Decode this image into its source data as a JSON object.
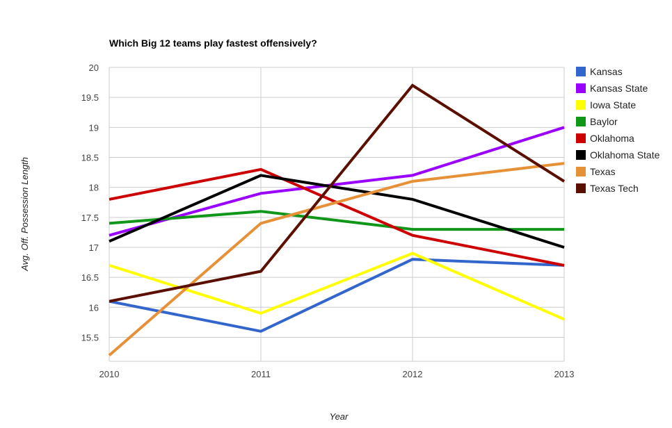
{
  "chart_data": {
    "type": "line",
    "title": "Which Big 12 teams play fastest offensively?",
    "xlabel": "Year",
    "ylabel": "Avg. Off. Possession Length",
    "x": [
      "2010",
      "2011",
      "2012",
      "2013"
    ],
    "ylim": [
      15.1,
      20
    ],
    "yticks": [
      "15.5",
      "16",
      "16.5",
      "17",
      "17.5",
      "18",
      "18.5",
      "19",
      "19.5",
      "20"
    ],
    "grid": true,
    "legend_position": "right",
    "series": [
      {
        "name": "Kansas",
        "color": "#3366cc",
        "values": [
          16.1,
          15.6,
          16.8,
          16.7
        ]
      },
      {
        "name": "Kansas State",
        "color": "#9900ff",
        "values": [
          17.2,
          17.9,
          18.2,
          19.0
        ]
      },
      {
        "name": "Iowa State",
        "color": "#ffff00",
        "values": [
          16.7,
          15.9,
          16.9,
          15.8
        ]
      },
      {
        "name": "Baylor",
        "color": "#109618",
        "values": [
          17.4,
          17.6,
          17.3,
          17.3
        ]
      },
      {
        "name": "Oklahoma",
        "color": "#cc0000",
        "values": [
          17.8,
          18.3,
          17.2,
          16.7
        ]
      },
      {
        "name": "Oklahoma State",
        "color": "#000000",
        "values": [
          17.1,
          18.2,
          17.8,
          17.0
        ]
      },
      {
        "name": "Texas",
        "color": "#e69138",
        "values": [
          15.2,
          17.4,
          18.1,
          18.4
        ]
      },
      {
        "name": "Texas Tech",
        "color": "#5b0f00",
        "values": [
          16.1,
          16.6,
          19.7,
          18.1
        ]
      }
    ]
  }
}
